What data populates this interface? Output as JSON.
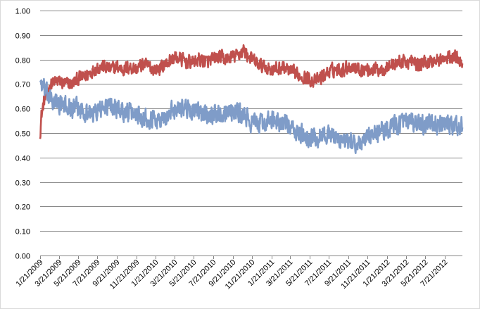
{
  "chart_data": {
    "type": "line",
    "title": "",
    "xlabel": "",
    "ylabel": "",
    "ylim": [
      0,
      1
    ],
    "xlim": [
      "2009-01-21",
      "2012-09-15"
    ],
    "grid": true,
    "legend": "none",
    "y_ticks": [
      "0.00",
      "0.10",
      "0.20",
      "0.30",
      "0.40",
      "0.50",
      "0.60",
      "0.70",
      "0.80",
      "0.90",
      "1.00"
    ],
    "x_ticks": [
      "1/21/2009",
      "3/21/2009",
      "5/21/2009",
      "7/21/2009",
      "9/21/2009",
      "11/21/2009",
      "1/21/2010",
      "3/21/2010",
      "5/21/2010",
      "7/21/2010",
      "9/21/2010",
      "11/21/2010",
      "1/21/2011",
      "3/21/2011",
      "5/21/2011",
      "7/21/2011",
      "9/21/2011",
      "11/21/2011",
      "1/21/2012",
      "3/21/2012",
      "5/21/2012",
      "7/21/2012"
    ],
    "x_tick_dates": [
      "2009-01-21",
      "2009-03-21",
      "2009-05-21",
      "2009-07-21",
      "2009-09-21",
      "2009-11-21",
      "2010-01-21",
      "2010-03-21",
      "2010-05-21",
      "2010-07-21",
      "2010-09-21",
      "2010-11-21",
      "2011-01-21",
      "2011-03-21",
      "2011-05-21",
      "2011-07-21",
      "2011-09-21",
      "2011-11-21",
      "2012-01-21",
      "2012-03-21",
      "2012-05-21",
      "2012-07-21"
    ],
    "series": [
      {
        "color": "#c0504d",
        "x": [
          "2009-01-21",
          "2009-01-25",
          "2009-02-01",
          "2009-02-10",
          "2009-02-21",
          "2009-03-05",
          "2009-03-21",
          "2009-04-10",
          "2009-05-01",
          "2009-05-21",
          "2009-06-10",
          "2009-07-01",
          "2009-07-21",
          "2009-08-10",
          "2009-09-01",
          "2009-09-21",
          "2009-10-10",
          "2009-11-01",
          "2009-11-21",
          "2009-12-10",
          "2010-01-01",
          "2010-01-21",
          "2010-02-10",
          "2010-03-01",
          "2010-03-21",
          "2010-04-10",
          "2010-05-01",
          "2010-05-21",
          "2010-06-10",
          "2010-07-01",
          "2010-07-21",
          "2010-08-10",
          "2010-09-01",
          "2010-09-21",
          "2010-10-10",
          "2010-10-25",
          "2010-11-05",
          "2010-11-21",
          "2010-12-10",
          "2011-01-01",
          "2011-01-21",
          "2011-02-10",
          "2011-03-01",
          "2011-03-21",
          "2011-04-10",
          "2011-05-01",
          "2011-05-21",
          "2011-06-10",
          "2011-07-01",
          "2011-07-21",
          "2011-08-10",
          "2011-09-01",
          "2011-09-21",
          "2011-10-10",
          "2011-11-01",
          "2011-11-21",
          "2011-12-10",
          "2012-01-01",
          "2012-01-21",
          "2012-02-10",
          "2012-03-01",
          "2012-03-21",
          "2012-04-10",
          "2012-05-01",
          "2012-05-21",
          "2012-06-10",
          "2012-07-01",
          "2012-07-21",
          "2012-08-10",
          "2012-09-01",
          "2012-09-15"
        ],
        "values": [
          0.5,
          0.57,
          0.62,
          0.66,
          0.69,
          0.71,
          0.71,
          0.7,
          0.7,
          0.72,
          0.73,
          0.75,
          0.77,
          0.77,
          0.76,
          0.77,
          0.76,
          0.77,
          0.76,
          0.78,
          0.77,
          0.76,
          0.77,
          0.79,
          0.81,
          0.8,
          0.79,
          0.79,
          0.8,
          0.79,
          0.8,
          0.81,
          0.8,
          0.81,
          0.82,
          0.84,
          0.82,
          0.8,
          0.78,
          0.77,
          0.76,
          0.76,
          0.77,
          0.75,
          0.74,
          0.73,
          0.72,
          0.71,
          0.73,
          0.75,
          0.76,
          0.76,
          0.77,
          0.77,
          0.76,
          0.76,
          0.76,
          0.76,
          0.77,
          0.78,
          0.79,
          0.79,
          0.79,
          0.78,
          0.79,
          0.79,
          0.8,
          0.8,
          0.81,
          0.81,
          0.79
        ],
        "noise": 0.025
      },
      {
        "color": "#7f9cc8",
        "x": [
          "2009-01-21",
          "2009-01-25",
          "2009-02-01",
          "2009-02-10",
          "2009-02-21",
          "2009-03-05",
          "2009-03-21",
          "2009-04-10",
          "2009-05-01",
          "2009-05-21",
          "2009-06-10",
          "2009-07-01",
          "2009-07-21",
          "2009-08-10",
          "2009-09-01",
          "2009-09-21",
          "2009-10-10",
          "2009-11-01",
          "2009-11-21",
          "2009-12-10",
          "2010-01-01",
          "2010-01-21",
          "2010-02-10",
          "2010-03-01",
          "2010-03-21",
          "2010-04-10",
          "2010-05-01",
          "2010-05-21",
          "2010-06-10",
          "2010-07-01",
          "2010-07-21",
          "2010-08-10",
          "2010-09-01",
          "2010-09-21",
          "2010-10-10",
          "2010-10-25",
          "2010-11-05",
          "2010-11-21",
          "2010-12-10",
          "2011-01-01",
          "2011-01-21",
          "2011-02-10",
          "2011-03-01",
          "2011-03-21",
          "2011-04-10",
          "2011-05-01",
          "2011-05-21",
          "2011-06-10",
          "2011-07-01",
          "2011-07-21",
          "2011-08-10",
          "2011-09-01",
          "2011-09-21",
          "2011-10-10",
          "2011-11-01",
          "2011-11-21",
          "2011-12-10",
          "2012-01-01",
          "2012-01-21",
          "2012-02-10",
          "2012-03-01",
          "2012-03-21",
          "2012-04-10",
          "2012-05-01",
          "2012-05-21",
          "2012-06-10",
          "2012-07-01",
          "2012-07-21",
          "2012-08-10",
          "2012-09-01",
          "2012-09-15"
        ],
        "values": [
          0.72,
          0.7,
          0.68,
          0.66,
          0.64,
          0.63,
          0.62,
          0.61,
          0.6,
          0.6,
          0.59,
          0.58,
          0.59,
          0.6,
          0.61,
          0.6,
          0.59,
          0.58,
          0.58,
          0.57,
          0.56,
          0.56,
          0.55,
          0.57,
          0.6,
          0.61,
          0.6,
          0.59,
          0.58,
          0.58,
          0.58,
          0.58,
          0.59,
          0.59,
          0.58,
          0.57,
          0.56,
          0.54,
          0.54,
          0.54,
          0.55,
          0.55,
          0.54,
          0.52,
          0.5,
          0.49,
          0.48,
          0.48,
          0.49,
          0.5,
          0.48,
          0.47,
          0.46,
          0.46,
          0.46,
          0.48,
          0.49,
          0.51,
          0.52,
          0.53,
          0.54,
          0.54,
          0.54,
          0.53,
          0.54,
          0.54,
          0.53,
          0.53,
          0.53,
          0.53,
          0.52
        ],
        "noise": 0.035
      }
    ]
  }
}
